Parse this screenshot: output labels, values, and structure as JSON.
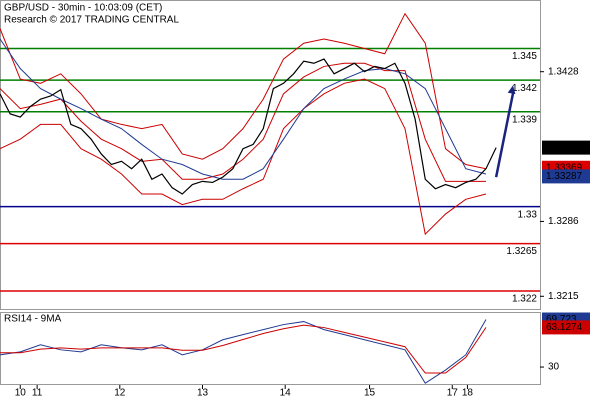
{
  "chart_data": [
    {
      "type": "line",
      "title": "GBP/USD - 30min - 10:03:09 (CET)",
      "subtitle": "Research © 2017 TRADING CENTRAL",
      "xlim": [
        0,
        320
      ],
      "ylim": [
        1.3202,
        1.3496
      ],
      "yticks": [
        1.3215,
        1.3286,
        1.3428
      ],
      "xticks": [
        {
          "value": 12,
          "label": "10"
        },
        {
          "value": 22,
          "label": "11"
        },
        {
          "value": 71,
          "label": "12"
        },
        {
          "value": 120,
          "label": "13"
        },
        {
          "value": 169,
          "label": "14"
        },
        {
          "value": 219,
          "label": "15"
        },
        {
          "value": 268,
          "label": "17"
        },
        {
          "value": 277,
          "label": "18"
        }
      ],
      "price": {
        "color": "#000000",
        "x": [
          0,
          6,
          12,
          18,
          24,
          30,
          36,
          42,
          48,
          54,
          60,
          66,
          72,
          78,
          84,
          90,
          96,
          102,
          108,
          114,
          120,
          126,
          132,
          138,
          144,
          150,
          156,
          162,
          168,
          174,
          180,
          186,
          192,
          198,
          204,
          210,
          216,
          222,
          228,
          234,
          240,
          246,
          252,
          258,
          264,
          270,
          276,
          282,
          288,
          294
        ],
        "values": [
          1.3407,
          1.3388,
          1.3385,
          1.3395,
          1.3402,
          1.3405,
          1.3411,
          1.3378,
          1.3374,
          1.3364,
          1.335,
          1.334,
          1.3343,
          1.3336,
          1.3345,
          1.3326,
          1.3331,
          1.3318,
          1.3312,
          1.3321,
          1.3324,
          1.3323,
          1.3328,
          1.3336,
          1.3355,
          1.3359,
          1.3374,
          1.3412,
          1.3417,
          1.3426,
          1.3438,
          1.3436,
          1.344,
          1.3426,
          1.3431,
          1.3436,
          1.3428,
          1.3433,
          1.3431,
          1.3436,
          1.3417,
          1.3383,
          1.3326,
          1.3317,
          1.3321,
          1.3318,
          1.3323,
          1.3326,
          1.3336,
          1.3356
        ]
      },
      "bands": {
        "band_color": "#cc0000",
        "ma_color": "#1f3a93",
        "x": [
          0,
          12,
          24,
          36,
          48,
          60,
          72,
          84,
          96,
          108,
          120,
          132,
          144,
          156,
          168,
          180,
          192,
          204,
          216,
          228,
          240,
          252,
          264,
          276,
          288
        ],
        "upper": [
          1.3469,
          1.3421,
          1.3417,
          1.3426,
          1.3407,
          1.3383,
          1.3378,
          1.3374,
          1.3378,
          1.335,
          1.3345,
          1.3355,
          1.3374,
          1.3402,
          1.344,
          1.3455,
          1.3459,
          1.3455,
          1.345,
          1.3445,
          1.3483,
          1.3455,
          1.3355,
          1.334,
          1.3336
        ],
        "lower": [
          1.3355,
          1.3364,
          1.3378,
          1.3378,
          1.3355,
          1.3345,
          1.3331,
          1.3312,
          1.3312,
          1.3302,
          1.3307,
          1.3307,
          1.3317,
          1.3326,
          1.3374,
          1.3393,
          1.3407,
          1.3417,
          1.3421,
          1.3412,
          1.3374,
          1.3274,
          1.3293,
          1.3307,
          1.3312
        ],
        "middle": [
          1.3412,
          1.3393,
          1.3397,
          1.3402,
          1.3381,
          1.3364,
          1.3355,
          1.3343,
          1.3345,
          1.3326,
          1.3326,
          1.3331,
          1.3345,
          1.3364,
          1.3407,
          1.3423,
          1.3433,
          1.3436,
          1.3436,
          1.3429,
          1.3429,
          1.3364,
          1.3324,
          1.3324,
          1.3324
        ],
        "ma": [
          1.3459,
          1.3431,
          1.3412,
          1.3402,
          1.3393,
          1.3383,
          1.3374,
          1.3359,
          1.3345,
          1.334,
          1.3331,
          1.3326,
          1.3326,
          1.3336,
          1.3364,
          1.3393,
          1.3412,
          1.3421,
          1.3429,
          1.3431,
          1.3426,
          1.3412,
          1.3374,
          1.3336,
          1.3331
        ]
      },
      "projection": {
        "color": "#1a237e",
        "x": [
          294,
          304
        ],
        "values": [
          1.3328,
          1.3415
        ]
      },
      "levels": [
        {
          "value": 1.345,
          "color": "#008000"
        },
        {
          "value": 1.342,
          "color": "#008000"
        },
        {
          "value": 1.339,
          "color": "#008000"
        },
        {
          "value": 1.33,
          "color": "#00008b"
        },
        {
          "value": 1.3265,
          "color": "#dd0000"
        },
        {
          "value": 1.322,
          "color": "#dd0000"
        }
      ],
      "markers": [
        {
          "value": 1.33369,
          "color": "#dd0000"
        },
        {
          "value": 1.33287,
          "color": "#1f3a93"
        }
      ]
    },
    {
      "type": "line",
      "title": "RSI14 - 9MA",
      "ylim": [
        15,
        76
      ],
      "yticks": [
        30
      ],
      "x": [
        0,
        12,
        24,
        36,
        48,
        60,
        72,
        84,
        96,
        108,
        120,
        132,
        144,
        156,
        168,
        180,
        192,
        204,
        216,
        228,
        240,
        252,
        264,
        276,
        288
      ],
      "series": [
        {
          "color": "#1f3a93",
          "values": [
            40.2,
            42.7,
            48.6,
            44.4,
            42.7,
            48.6,
            46.1,
            44.4,
            48.6,
            40.2,
            44.4,
            52.8,
            57.1,
            61.3,
            65.5,
            68.0,
            61.3,
            57.1,
            52.8,
            48.6,
            44.4,
            16.5,
            27.5,
            40.2,
            69.723
          ]
        },
        {
          "color": "#cc0000",
          "values": [
            42,
            42,
            45,
            46,
            45,
            46,
            46,
            46,
            46,
            44,
            44,
            48,
            53,
            58,
            62,
            65,
            63,
            59,
            55,
            51,
            47,
            25,
            25,
            38,
            63.1274
          ]
        }
      ]
    }
  ]
}
